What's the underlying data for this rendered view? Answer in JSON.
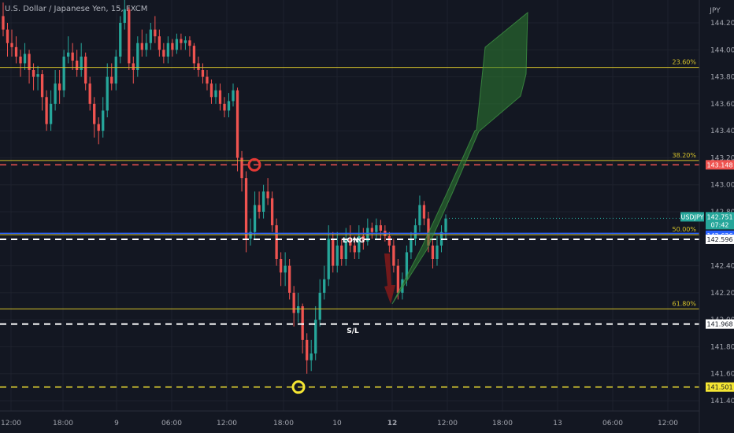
{
  "header": {
    "title": "U.S. Dollar / Japanese Yen, 15, FXCM"
  },
  "colors": {
    "background": "#131722",
    "up": "#26a69a",
    "down": "#ef5350",
    "fib": "#d4c12a",
    "blue_line": "#2962ff",
    "red_level": "#ef5350",
    "yellow_level": "#f5e633",
    "arrow_green": "#2e7d32",
    "arrow_red": "#8b1a1a"
  },
  "chart_data": {
    "type": "candlestick",
    "symbol": "USDJPY",
    "interval": "15",
    "currency_label": "JPY",
    "ylim": [
      141.3,
      144.4
    ],
    "y_ticks": [
      "144.200",
      "144.000",
      "143.800",
      "143.600",
      "143.400",
      "143.200",
      "143.000",
      "142.800",
      "142.600",
      "142.400",
      "142.200",
      "142.000",
      "141.800",
      "141.600",
      "141.400"
    ],
    "x_ticks": [
      "12:00",
      "18:00",
      "9",
      "06:00",
      "12:00",
      "18:00",
      "10",
      "12",
      "12:00",
      "18:00",
      "13",
      "06:00",
      "12:00"
    ],
    "x_tick_bold": [
      "12"
    ],
    "fib_levels": [
      {
        "label": "23.60%",
        "price": 143.87
      },
      {
        "label": "38.20%",
        "price": 143.18
      },
      {
        "label": "50.00%",
        "price": 142.63
      },
      {
        "label": "61.80%",
        "price": 142.08
      }
    ],
    "price_tags": [
      {
        "text": "143.148",
        "price": 143.148,
        "style": "red"
      },
      {
        "text": "142.626",
        "price": 142.626,
        "style": "blue"
      },
      {
        "text": "142.596",
        "price": 142.596,
        "style": "white"
      },
      {
        "text": "141.968",
        "price": 141.968,
        "style": "white"
      },
      {
        "text": "141.501",
        "price": 141.501,
        "style": "yellow"
      }
    ],
    "current_price": {
      "symbol": "USDJPY",
      "price": "142.751",
      "countdown": "07:42"
    },
    "annotations": [
      {
        "text": "LONG",
        "price": 142.59
      },
      {
        "text": "S/L",
        "price": 141.92
      }
    ],
    "candles": [
      [
        144.25,
        144.15,
        144.35,
        144.1
      ],
      [
        144.15,
        144.05,
        144.2,
        143.95
      ],
      [
        144.05,
        144.02,
        144.15,
        143.95
      ],
      [
        144.02,
        143.95,
        144.1,
        143.9
      ],
      [
        143.95,
        143.9,
        144.0,
        143.8
      ],
      [
        143.9,
        143.97,
        144.05,
        143.85
      ],
      [
        143.97,
        143.85,
        144.0,
        143.75
      ],
      [
        143.85,
        143.8,
        143.9,
        143.7
      ],
      [
        143.8,
        143.82,
        143.88,
        143.7
      ],
      [
        143.82,
        143.65,
        143.85,
        143.55
      ],
      [
        143.65,
        143.45,
        143.7,
        143.4
      ],
      [
        143.45,
        143.6,
        143.7,
        143.4
      ],
      [
        143.6,
        143.75,
        143.85,
        143.55
      ],
      [
        143.75,
        143.7,
        143.85,
        143.6
      ],
      [
        143.7,
        143.95,
        144.0,
        143.65
      ],
      [
        143.95,
        143.98,
        144.1,
        143.9
      ],
      [
        143.98,
        143.92,
        144.05,
        143.85
      ],
      [
        143.92,
        143.85,
        144.0,
        143.8
      ],
      [
        143.85,
        143.95,
        144.05,
        143.8
      ],
      [
        143.95,
        143.75,
        143.98,
        143.7
      ],
      [
        143.75,
        143.6,
        143.8,
        143.55
      ],
      [
        143.6,
        143.45,
        143.65,
        143.35
      ],
      [
        143.45,
        143.4,
        143.5,
        143.3
      ],
      [
        143.4,
        143.55,
        143.65,
        143.35
      ],
      [
        143.55,
        143.8,
        143.9,
        143.5
      ],
      [
        143.8,
        143.75,
        143.9,
        143.7
      ],
      [
        143.75,
        143.95,
        144.0,
        143.7
      ],
      [
        143.95,
        144.2,
        144.25,
        143.9
      ],
      [
        144.2,
        144.3,
        144.42,
        144.15
      ],
      [
        144.3,
        143.9,
        144.32,
        143.85
      ],
      [
        143.9,
        143.85,
        143.95,
        143.75
      ],
      [
        143.85,
        144.05,
        144.1,
        143.8
      ],
      [
        144.05,
        144.0,
        144.15,
        143.95
      ],
      [
        144.0,
        144.05,
        144.12,
        143.95
      ],
      [
        144.05,
        144.15,
        144.2,
        144.0
      ],
      [
        144.15,
        144.1,
        144.25,
        144.05
      ],
      [
        144.1,
        144.0,
        144.15,
        143.95
      ],
      [
        144.0,
        143.95,
        144.05,
        143.9
      ],
      [
        143.95,
        144.05,
        144.1,
        143.9
      ],
      [
        144.05,
        144.0,
        144.08,
        143.95
      ],
      [
        144.0,
        144.08,
        144.12,
        143.97
      ],
      [
        144.08,
        144.05,
        144.12,
        144.0
      ],
      [
        144.05,
        144.07,
        144.1,
        144.0
      ],
      [
        144.07,
        144.03,
        144.1,
        143.95
      ],
      [
        144.03,
        143.9,
        144.05,
        143.85
      ],
      [
        143.9,
        143.85,
        143.95,
        143.8
      ],
      [
        143.85,
        143.8,
        143.9,
        143.75
      ],
      [
        143.8,
        143.75,
        143.85,
        143.7
      ],
      [
        143.75,
        143.65,
        143.78,
        143.6
      ],
      [
        143.65,
        143.7,
        143.75,
        143.6
      ],
      [
        143.7,
        143.6,
        143.75,
        143.55
      ],
      [
        143.6,
        143.55,
        143.65,
        143.5
      ],
      [
        143.55,
        143.62,
        143.68,
        143.5
      ],
      [
        143.62,
        143.7,
        143.75,
        143.58
      ],
      [
        143.7,
        143.2,
        143.72,
        143.1
      ],
      [
        143.2,
        143.05,
        143.25,
        142.95
      ],
      [
        143.05,
        142.6,
        143.1,
        142.5
      ],
      [
        142.6,
        142.65,
        142.75,
        142.55
      ],
      [
        142.65,
        142.85,
        142.95,
        142.6
      ],
      [
        142.85,
        142.8,
        142.95,
        142.75
      ],
      [
        142.8,
        142.95,
        143.0,
        142.75
      ],
      [
        142.95,
        142.9,
        143.05,
        142.85
      ],
      [
        142.9,
        142.7,
        142.95,
        142.65
      ],
      [
        142.7,
        142.45,
        142.75,
        142.4
      ],
      [
        142.45,
        142.35,
        142.5,
        142.25
      ],
      [
        142.35,
        142.4,
        142.5,
        142.25
      ],
      [
        142.4,
        142.2,
        142.45,
        142.15
      ],
      [
        142.2,
        142.05,
        142.25,
        141.95
      ],
      [
        142.05,
        142.1,
        142.2,
        141.98
      ],
      [
        142.1,
        141.85,
        142.12,
        141.75
      ],
      [
        141.85,
        141.7,
        141.9,
        141.6
      ],
      [
        141.7,
        141.75,
        141.85,
        141.62
      ],
      [
        141.75,
        142.0,
        142.1,
        141.7
      ],
      [
        142.0,
        142.2,
        142.3,
        141.95
      ],
      [
        142.2,
        142.3,
        142.4,
        142.15
      ],
      [
        142.3,
        142.6,
        142.7,
        142.25
      ],
      [
        142.6,
        142.4,
        142.65,
        142.35
      ],
      [
        142.4,
        142.55,
        142.65,
        142.35
      ],
      [
        142.55,
        142.45,
        142.6,
        142.4
      ],
      [
        142.45,
        142.6,
        142.68,
        142.4
      ],
      [
        142.6,
        142.55,
        142.7,
        142.5
      ],
      [
        142.55,
        142.5,
        142.62,
        142.45
      ],
      [
        142.5,
        142.62,
        142.7,
        142.45
      ],
      [
        142.62,
        142.58,
        142.68,
        142.52
      ],
      [
        142.58,
        142.68,
        142.75,
        142.55
      ],
      [
        142.68,
        142.65,
        142.72,
        142.6
      ],
      [
        142.65,
        142.7,
        142.75,
        142.6
      ],
      [
        142.7,
        142.66,
        142.74,
        142.6
      ],
      [
        142.66,
        142.62,
        142.7,
        142.58
      ],
      [
        142.62,
        142.55,
        142.65,
        142.5
      ],
      [
        142.55,
        142.4,
        142.6,
        142.35
      ],
      [
        142.4,
        142.2,
        142.45,
        142.15
      ],
      [
        142.2,
        142.3,
        142.35,
        142.15
      ],
      [
        142.3,
        142.5,
        142.55,
        142.25
      ],
      [
        142.5,
        142.6,
        142.65,
        142.45
      ],
      [
        142.6,
        142.7,
        142.75,
        142.55
      ],
      [
        142.7,
        142.85,
        142.92,
        142.65
      ],
      [
        142.85,
        142.75,
        142.88,
        142.7
      ],
      [
        142.75,
        142.55,
        142.8,
        142.5
      ],
      [
        142.55,
        142.45,
        142.6,
        142.38
      ],
      [
        142.45,
        142.55,
        142.62,
        142.4
      ],
      [
        142.55,
        142.65,
        142.7,
        142.5
      ],
      [
        142.65,
        142.75,
        142.78,
        142.6
      ]
    ]
  }
}
